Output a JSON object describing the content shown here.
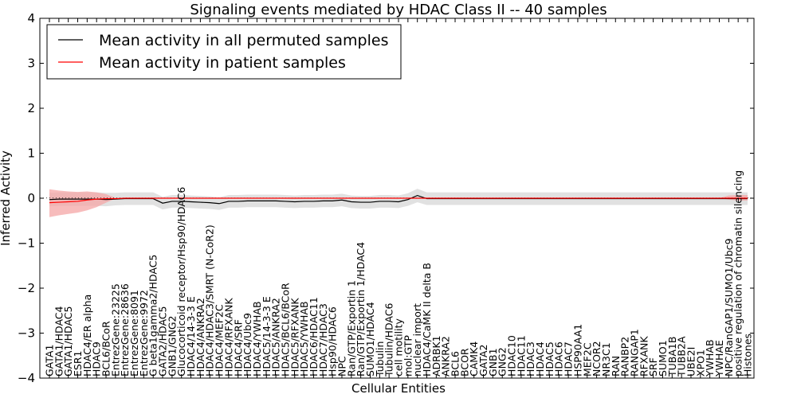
{
  "chart_data": {
    "type": "line",
    "title": "Signaling events mediated by HDAC Class II -- 40 samples",
    "xlabel": "Cellular Entities",
    "ylabel": "Inferred Activity",
    "ylim": [
      -4,
      4
    ],
    "yticks": [
      -4,
      -3,
      -2,
      -1,
      0,
      1,
      2,
      3,
      4
    ],
    "ytick_labels": [
      "−4",
      "−3",
      "−2",
      "−1",
      "0",
      "1",
      "2",
      "3",
      "4"
    ],
    "grid": false,
    "legend_position": "top-left",
    "categories": [
      "GATA1",
      "GATA1/HDAC4",
      "GATA1/HDAC5",
      "ESR1",
      "HDAC4/ER alpha",
      "HDAC9",
      "BCL6/BCoR",
      "EntrezGene:23225",
      "EntrezGene:28636",
      "EntrezGene:8091",
      "EntrezGene:9972",
      "G beta1gamma2/HDAC5",
      "GATA2/HDAC5",
      "GNB1/GNG2",
      "Glucocorticoid receptor/Hsp90/HDAC6",
      "HDAC4/14-3-3 E",
      "HDAC4/ANKRA2",
      "HDAC4/HDAC3/SMRT (N-CoR2)",
      "HDAC4/MEF2C",
      "HDAC4/RFXANK",
      "HDAC4/SRF",
      "HDAC4/Ubc9",
      "HDAC4/YWHAB",
      "HDAC5/14-3-3 E",
      "HDAC5/ANKRA2",
      "HDAC5/BCL6/BCoR",
      "HDAC5/RFXANK",
      "HDAC5/YWHAB",
      "HDAC6/HDAC11",
      "HDAC7/HDAC3",
      "Hsp90/HDAC6",
      "NPC",
      "Ran/GTP/Exportin 1",
      "Ran/GTP/Exportin 1/HDAC4",
      "SUMO1/HDAC4",
      "Tubulin",
      "Tubulin/HDAC6",
      "cell motility",
      "mol:GTP",
      "nuclear import",
      "HDAC4/CaMK II delta B",
      "ADRBK1",
      "ANKRA2",
      "BCL6",
      "BCOR",
      "CAMK4",
      "GATA2",
      "GNB1",
      "GNG2",
      "HDAC10",
      "HDAC11",
      "HDAC3",
      "HDAC4",
      "HDAC5",
      "HDAC6",
      "HDAC7",
      "HSP90AA1",
      "MEF2C",
      "NCOR2",
      "NR3C1",
      "RAN",
      "RANBP2",
      "RANGAP1",
      "RFXANK",
      "SRF",
      "SUMO1",
      "TUBA1B",
      "TUBB2A",
      "UBE2I",
      "XPO1",
      "YWHAB",
      "YWHAE",
      "NPC/RanGAP1/SUMO1/Ubc9",
      "positive regulation of chromatin silencing",
      "Histones"
    ],
    "series": [
      {
        "name": "Mean activity in all permuted samples",
        "color": "#000000",
        "band_color": "#d9d9d9",
        "values": [
          -0.03,
          -0.02,
          -0.02,
          -0.02,
          -0.02,
          -0.02,
          -0.03,
          -0.02,
          -0.01,
          -0.01,
          -0.01,
          -0.01,
          -0.11,
          -0.07,
          -0.07,
          -0.08,
          -0.09,
          -0.1,
          -0.12,
          -0.07,
          -0.07,
          -0.06,
          -0.06,
          -0.06,
          -0.06,
          -0.07,
          -0.08,
          -0.07,
          -0.07,
          -0.06,
          -0.06,
          -0.04,
          -0.08,
          -0.09,
          -0.09,
          -0.07,
          -0.07,
          -0.08,
          -0.03,
          0.06,
          -0.01,
          -0.01,
          -0.01,
          -0.01,
          -0.01,
          -0.01,
          -0.01,
          -0.01,
          -0.01,
          -0.01,
          -0.01,
          -0.01,
          -0.01,
          -0.01,
          -0.01,
          -0.01,
          -0.01,
          -0.01,
          -0.01,
          -0.01,
          -0.01,
          -0.01,
          -0.01,
          -0.01,
          -0.01,
          -0.01,
          -0.01,
          -0.01,
          -0.01,
          -0.01,
          -0.01,
          -0.01,
          -0.01,
          -0.01,
          -0.01
        ],
        "band_lower": [
          -0.18,
          -0.17,
          -0.17,
          -0.17,
          -0.17,
          -0.17,
          -0.18,
          -0.16,
          -0.15,
          -0.15,
          -0.15,
          -0.15,
          -0.25,
          -0.21,
          -0.21,
          -0.22,
          -0.23,
          -0.24,
          -0.26,
          -0.21,
          -0.21,
          -0.2,
          -0.2,
          -0.2,
          -0.2,
          -0.21,
          -0.22,
          -0.21,
          -0.21,
          -0.2,
          -0.2,
          -0.18,
          -0.22,
          -0.23,
          -0.23,
          -0.21,
          -0.21,
          -0.22,
          -0.17,
          -0.09,
          -0.15,
          -0.15,
          -0.15,
          -0.15,
          -0.15,
          -0.15,
          -0.15,
          -0.15,
          -0.15,
          -0.15,
          -0.15,
          -0.15,
          -0.15,
          -0.15,
          -0.15,
          -0.15,
          -0.15,
          -0.15,
          -0.15,
          -0.15,
          -0.15,
          -0.15,
          -0.15,
          -0.15,
          -0.15,
          -0.15,
          -0.15,
          -0.15,
          -0.15,
          -0.15,
          -0.15,
          -0.15,
          -0.15,
          -0.15,
          -0.15
        ],
        "band_upper": [
          0.12,
          0.13,
          0.13,
          0.13,
          0.13,
          0.13,
          0.12,
          0.12,
          0.13,
          0.13,
          0.13,
          0.13,
          0.03,
          0.07,
          0.07,
          0.06,
          0.05,
          0.04,
          0.02,
          0.07,
          0.07,
          0.08,
          0.08,
          0.08,
          0.08,
          0.07,
          0.06,
          0.07,
          0.07,
          0.08,
          0.08,
          0.1,
          0.06,
          0.05,
          0.05,
          0.07,
          0.07,
          0.06,
          0.11,
          0.21,
          0.13,
          0.13,
          0.13,
          0.13,
          0.13,
          0.13,
          0.13,
          0.13,
          0.13,
          0.13,
          0.13,
          0.13,
          0.13,
          0.13,
          0.13,
          0.13,
          0.13,
          0.13,
          0.13,
          0.13,
          0.13,
          0.13,
          0.13,
          0.13,
          0.13,
          0.13,
          0.13,
          0.13,
          0.13,
          0.13,
          0.13,
          0.13,
          0.13,
          0.13,
          0.13
        ]
      },
      {
        "name": "Mean activity in patient samples",
        "color": "#ff0000",
        "band_color": "#f4a6a6",
        "values": [
          -0.1,
          -0.09,
          -0.08,
          -0.07,
          -0.04,
          -0.02,
          -0.01,
          -0.01,
          0,
          0,
          0,
          0,
          0,
          0,
          0,
          0,
          0,
          0,
          0,
          0,
          0,
          0,
          0,
          0,
          0,
          0,
          0,
          0,
          0,
          0,
          0,
          0,
          0,
          0,
          0,
          0,
          0,
          0,
          0,
          0,
          0,
          0,
          0,
          0,
          0,
          0,
          0,
          0,
          0,
          0,
          0,
          0,
          0,
          0,
          0,
          0,
          0,
          0,
          0,
          0,
          0,
          0,
          0,
          0,
          0,
          0,
          0,
          0,
          0,
          0,
          0,
          0,
          0,
          0,
          0
        ],
        "band_lower": [
          -0.42,
          -0.38,
          -0.35,
          -0.32,
          -0.27,
          -0.2,
          -0.1,
          -0.01,
          0,
          0,
          0,
          0,
          0,
          0,
          0,
          0,
          0,
          0,
          0,
          0,
          0,
          0,
          0,
          0,
          0,
          0,
          0,
          0,
          0,
          0,
          0,
          0,
          0,
          0,
          0,
          0,
          0,
          0,
          0,
          0,
          0,
          0,
          0,
          0,
          0,
          0,
          0,
          0,
          0,
          0,
          0,
          0,
          0,
          0,
          0,
          0,
          0,
          0,
          0,
          0,
          0,
          0,
          0,
          0,
          0,
          0,
          0,
          0,
          0,
          0,
          0,
          0,
          -0.03,
          -0.05,
          -0.05
        ],
        "band_upper": [
          0.2,
          0.17,
          0.15,
          0.14,
          0.15,
          0.13,
          0.09,
          0.01,
          0,
          0,
          0,
          0,
          0,
          0,
          0,
          0,
          0,
          0,
          0,
          0,
          0,
          0,
          0,
          0,
          0,
          0,
          0,
          0,
          0,
          0,
          0,
          0,
          0,
          0,
          0,
          0,
          0,
          0,
          0,
          0,
          0,
          0,
          0,
          0,
          0,
          0,
          0,
          0,
          0,
          0,
          0,
          0,
          0,
          0,
          0,
          0,
          0,
          0,
          0,
          0,
          0,
          0,
          0,
          0,
          0,
          0,
          0,
          0,
          0,
          0,
          0,
          0,
          0.06,
          0.07,
          0.07
        ]
      }
    ]
  }
}
